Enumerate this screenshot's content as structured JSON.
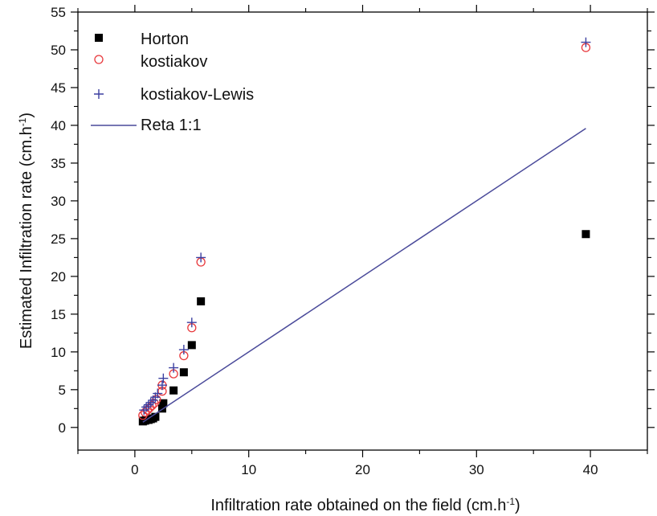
{
  "chart_data": {
    "type": "scatter",
    "xlabel": "Infiltration rate obtained on the field (cm.h",
    "xlabel_sup": "-1",
    "xlabel_suffix": ")",
    "ylabel": "Estimated Infiltration rate (cm.h",
    "ylabel_sup": "-1",
    "ylabel_suffix": ")",
    "xlim": [
      -5,
      45
    ],
    "ylim": [
      -3,
      55
    ],
    "xticks": [
      0,
      10,
      20,
      30,
      40
    ],
    "xtick_labels": [
      "0",
      "10",
      "20",
      "30",
      "40"
    ],
    "yticks": [
      0,
      5,
      10,
      15,
      20,
      25,
      30,
      35,
      40,
      45,
      50,
      55
    ],
    "ytick_labels": [
      "0",
      "5",
      "10",
      "15",
      "20",
      "25",
      "30",
      "35",
      "40",
      "45",
      "50",
      "55"
    ],
    "grid": false,
    "legend_position": "top-left",
    "series": [
      {
        "name": "Horton",
        "marker": "filled-square",
        "color": "#000000",
        "points": [
          [
            0.7,
            0.8
          ],
          [
            0.8,
            0.9
          ],
          [
            0.9,
            0.9
          ],
          [
            1.0,
            1.0
          ],
          [
            1.2,
            1.0
          ],
          [
            1.4,
            1.1
          ],
          [
            1.6,
            1.2
          ],
          [
            1.8,
            1.4
          ],
          [
            2.4,
            2.5
          ],
          [
            2.5,
            3.2
          ],
          [
            3.4,
            4.9
          ],
          [
            4.3,
            7.3
          ],
          [
            5.0,
            10.9
          ],
          [
            5.8,
            16.7
          ],
          [
            39.6,
            25.6
          ]
        ]
      },
      {
        "name": "kostiakov",
        "marker": "open-circle",
        "color": "#e8393d",
        "points": [
          [
            0.7,
            1.6
          ],
          [
            0.9,
            2.0
          ],
          [
            1.1,
            2.3
          ],
          [
            1.3,
            2.6
          ],
          [
            1.5,
            2.9
          ],
          [
            1.7,
            3.2
          ],
          [
            1.9,
            3.7
          ],
          [
            2.4,
            4.8
          ],
          [
            2.4,
            5.6
          ],
          [
            3.4,
            7.1
          ],
          [
            4.3,
            9.5
          ],
          [
            5.0,
            13.2
          ],
          [
            5.8,
            21.9
          ],
          [
            39.6,
            50.3
          ]
        ]
      },
      {
        "name": "kostiakov-Lewis",
        "marker": "plus",
        "color": "#3b3fa0",
        "points": [
          [
            0.8,
            2.3
          ],
          [
            1.0,
            2.7
          ],
          [
            1.2,
            3.0
          ],
          [
            1.4,
            3.3
          ],
          [
            1.6,
            3.6
          ],
          [
            1.8,
            4.0
          ],
          [
            2.0,
            4.5
          ],
          [
            2.4,
            5.6
          ],
          [
            2.5,
            6.5
          ],
          [
            3.4,
            7.9
          ],
          [
            4.3,
            10.3
          ],
          [
            5.0,
            13.9
          ],
          [
            5.8,
            22.5
          ],
          [
            39.6,
            51.0
          ]
        ]
      },
      {
        "name": "Reta 1:1",
        "marker": "line",
        "color": "#4a4a9a",
        "points": [
          [
            0.7,
            0.7
          ],
          [
            39.6,
            39.6
          ]
        ]
      }
    ]
  }
}
